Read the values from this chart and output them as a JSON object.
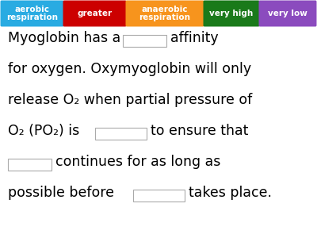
{
  "word_bank": [
    {
      "text": "aerobic\nrespiration",
      "bg": "#29ABE2",
      "fg": "#FFFFFF"
    },
    {
      "text": "greater",
      "bg": "#CC0000",
      "fg": "#FFFFFF"
    },
    {
      "text": "anaerobic\nrespiration",
      "bg": "#F7941D",
      "fg": "#FFFFFF"
    },
    {
      "text": "very high",
      "bg": "#1A7A1A",
      "fg": "#FFFFFF"
    },
    {
      "text": "very low",
      "bg": "#8B4BBE",
      "fg": "#FFFFFF"
    }
  ],
  "background": "#FFFFFF",
  "text_color": "#000000",
  "blank_border": "#AAAAAA",
  "word_bank_fontsize": 7.5,
  "body_fontsize": 12.5
}
